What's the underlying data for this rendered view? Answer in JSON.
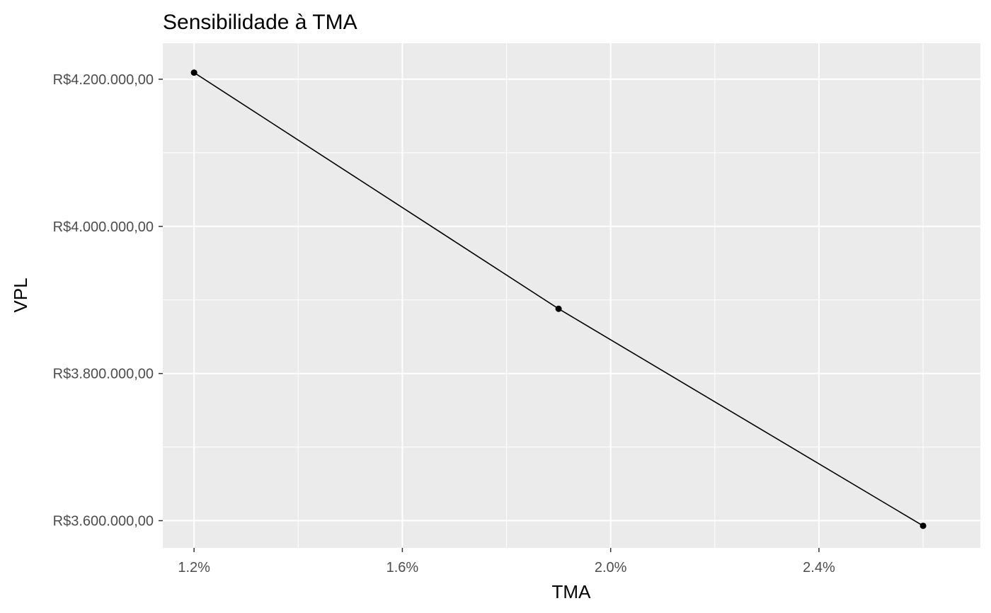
{
  "chart_data": {
    "type": "line",
    "title": "Sensibilidade à TMA",
    "xlabel": "TMA",
    "ylabel": "VPL",
    "x": [
      0.012,
      0.019,
      0.026
    ],
    "y": [
      4209000,
      3888000,
      3593000
    ],
    "xlim": [
      0.0114,
      0.0271
    ],
    "ylim": [
      3563000,
      4249000
    ],
    "x_ticks": [
      0.012,
      0.016,
      0.02,
      0.024
    ],
    "x_tick_labels": [
      "1.2%",
      "1.6%",
      "2.0%",
      "2.4%"
    ],
    "y_ticks": [
      3600000,
      3800000,
      4000000,
      4200000
    ],
    "y_tick_labels": [
      "R$3.600.000,00",
      "R$3.800.000,00",
      "R$4.000.000,00",
      "R$4.200.000,00"
    ],
    "grid": true,
    "legend": "none",
    "colors": {
      "panel_bg": "#ebebeb",
      "grid": "#ffffff",
      "line": "#000000",
      "point": "#000000",
      "tick_text": "#4d4d4d"
    }
  }
}
